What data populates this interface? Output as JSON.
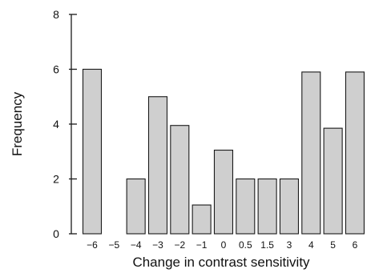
{
  "chart_data": {
    "type": "bar",
    "categories": [
      "−6",
      "−5",
      "−4",
      "−3",
      "−2",
      "−1",
      "0",
      "0.5",
      "1.5",
      "3",
      "4",
      "5",
      "6"
    ],
    "values": [
      6,
      0,
      2,
      5,
      3.95,
      1.05,
      3.05,
      2,
      2,
      2,
      5.9,
      3.85,
      5.9
    ],
    "xlabel": "Change in contrast sensitivity",
    "ylabel": "Frequency",
    "ylim": [
      0,
      8
    ],
    "yticks": [
      0,
      2,
      4,
      6,
      8
    ],
    "grid": false,
    "colors": {
      "bar_fill": "#cfcfcf",
      "bar_stroke": "#1a1a1a"
    }
  }
}
